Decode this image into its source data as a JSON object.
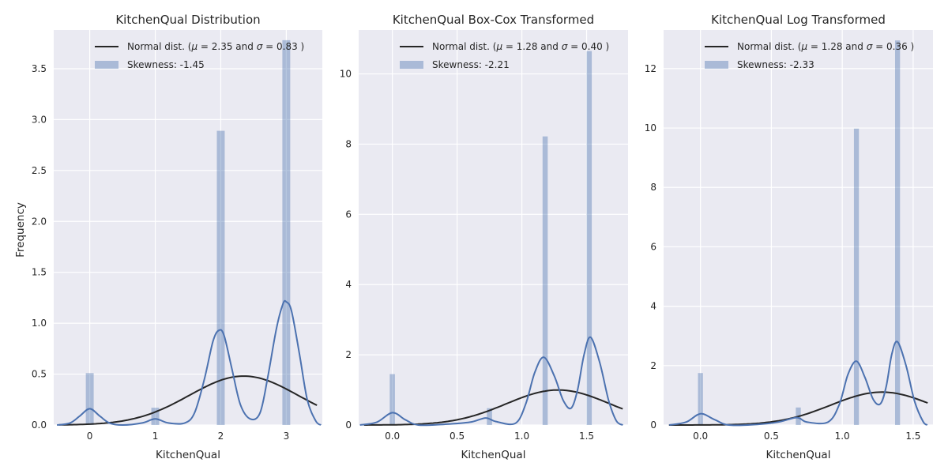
{
  "figure": {
    "ylabel": "Frequency",
    "colors": {
      "background": "#eaeaf2",
      "grid": "#ffffff",
      "bars": "#4c72b0",
      "kde": "#4c72b0",
      "normal": "#262626"
    }
  },
  "chart_data": [
    {
      "type": "histogram",
      "title": "KitchenQual Distribution",
      "xlabel": "KitchenQual",
      "ylabel": "Frequency",
      "xlim": [
        -0.55,
        3.55
      ],
      "ylim": [
        0,
        3.88
      ],
      "xticks": [
        0,
        1,
        2,
        3
      ],
      "xtick_labels": [
        "0",
        "1",
        "2",
        "3"
      ],
      "yticks": [
        0.0,
        0.5,
        1.0,
        1.5,
        2.0,
        2.5,
        3.0,
        3.5
      ],
      "ytick_labels": [
        "0.0",
        "0.5",
        "1.0",
        "1.5",
        "2.0",
        "2.5",
        "3.0",
        "3.5"
      ],
      "bars": [
        {
          "x": 0,
          "value": 0.51
        },
        {
          "x": 1,
          "value": 0.17
        },
        {
          "x": 2,
          "value": 2.89
        },
        {
          "x": 3,
          "value": 3.78
        }
      ],
      "bar_width": 0.12,
      "normal": {
        "mu": 2.35,
        "sigma": 0.83
      },
      "kde_points": [
        [
          -0.5,
          0.0
        ],
        [
          -0.3,
          0.02
        ],
        [
          -0.15,
          0.09
        ],
        [
          0,
          0.16
        ],
        [
          0.15,
          0.09
        ],
        [
          0.3,
          0.02
        ],
        [
          0.5,
          0.0
        ],
        [
          0.8,
          0.02
        ],
        [
          1,
          0.06
        ],
        [
          1.2,
          0.02
        ],
        [
          1.45,
          0.02
        ],
        [
          1.6,
          0.12
        ],
        [
          1.75,
          0.45
        ],
        [
          1.88,
          0.82
        ],
        [
          1.97,
          0.93
        ],
        [
          2.05,
          0.88
        ],
        [
          2.17,
          0.55
        ],
        [
          2.3,
          0.2
        ],
        [
          2.45,
          0.06
        ],
        [
          2.6,
          0.12
        ],
        [
          2.72,
          0.48
        ],
        [
          2.85,
          0.95
        ],
        [
          2.95,
          1.19
        ],
        [
          3.0,
          1.21
        ],
        [
          3.08,
          1.12
        ],
        [
          3.2,
          0.7
        ],
        [
          3.32,
          0.25
        ],
        [
          3.45,
          0.04
        ],
        [
          3.53,
          0.0
        ]
      ],
      "legend": {
        "normal_label": "Normal dist. ($\\mu=$ 2.35 and $\\sigma=$ 0.83 )",
        "normal_mu": "2.35",
        "normal_sigma": "0.83",
        "skew_label": "Skewness: -1.45"
      }
    },
    {
      "type": "histogram",
      "title": "KitchenQual Box-Cox Transformed",
      "xlabel": "KitchenQual",
      "ylabel": "",
      "xlim": [
        -0.26,
        1.82
      ],
      "ylim": [
        0,
        11.25
      ],
      "xticks": [
        0.0,
        0.5,
        1.0,
        1.5
      ],
      "xtick_labels": [
        "0.0",
        "0.5",
        "1.0",
        "1.5"
      ],
      "yticks": [
        0,
        2,
        4,
        6,
        8,
        10
      ],
      "ytick_labels": [
        "0",
        "2",
        "4",
        "6",
        "8",
        "10"
      ],
      "bars": [
        {
          "x": 0.0,
          "value": 1.45
        },
        {
          "x": 0.75,
          "value": 0.48
        },
        {
          "x": 1.18,
          "value": 8.22
        },
        {
          "x": 1.52,
          "value": 10.65
        }
      ],
      "bar_width": 0.04,
      "normal": {
        "mu": 1.28,
        "sigma": 0.4
      },
      "kde_points": [
        [
          -0.25,
          0.0
        ],
        [
          -0.12,
          0.08
        ],
        [
          0.0,
          0.35
        ],
        [
          0.1,
          0.15
        ],
        [
          0.2,
          0.0
        ],
        [
          0.4,
          0.02
        ],
        [
          0.6,
          0.08
        ],
        [
          0.72,
          0.2
        ],
        [
          0.8,
          0.1
        ],
        [
          0.95,
          0.05
        ],
        [
          1.03,
          0.6
        ],
        [
          1.1,
          1.5
        ],
        [
          1.17,
          1.93
        ],
        [
          1.25,
          1.4
        ],
        [
          1.32,
          0.7
        ],
        [
          1.38,
          0.48
        ],
        [
          1.43,
          1.0
        ],
        [
          1.48,
          2.0
        ],
        [
          1.53,
          2.5
        ],
        [
          1.6,
          1.8
        ],
        [
          1.67,
          0.7
        ],
        [
          1.73,
          0.12
        ],
        [
          1.78,
          0.0
        ]
      ],
      "legend": {
        "normal_label": "Normal dist. ($\\mu=$ 1.28 and $\\sigma=$ 0.40 )",
        "normal_mu": "1.28",
        "normal_sigma": "0.40",
        "skew_label": "Skewness: -2.21"
      }
    },
    {
      "type": "histogram",
      "title": "KitchenQual Log Transformed",
      "xlabel": "KitchenQual",
      "ylabel": "",
      "xlim": [
        -0.26,
        1.64
      ],
      "ylim": [
        0,
        13.3
      ],
      "xticks": [
        0.0,
        0.5,
        1.0,
        1.5
      ],
      "xtick_labels": [
        "0.0",
        "0.5",
        "1.0",
        "1.5"
      ],
      "yticks": [
        0,
        2,
        4,
        6,
        8,
        10,
        12
      ],
      "ytick_labels": [
        "0",
        "2",
        "4",
        "6",
        "8",
        "10",
        "12"
      ],
      "bars": [
        {
          "x": 0.0,
          "value": 1.75
        },
        {
          "x": 0.69,
          "value": 0.59
        },
        {
          "x": 1.1,
          "value": 9.98
        },
        {
          "x": 1.39,
          "value": 12.95
        }
      ],
      "bar_width": 0.035,
      "normal": {
        "mu": 1.28,
        "sigma": 0.36
      },
      "kde_points": [
        [
          -0.22,
          0.0
        ],
        [
          -0.1,
          0.1
        ],
        [
          0.0,
          0.38
        ],
        [
          0.1,
          0.18
        ],
        [
          0.2,
          0.0
        ],
        [
          0.4,
          0.02
        ],
        [
          0.55,
          0.1
        ],
        [
          0.68,
          0.25
        ],
        [
          0.75,
          0.1
        ],
        [
          0.9,
          0.1
        ],
        [
          0.98,
          0.7
        ],
        [
          1.04,
          1.7
        ],
        [
          1.1,
          2.15
        ],
        [
          1.16,
          1.6
        ],
        [
          1.22,
          0.85
        ],
        [
          1.27,
          0.72
        ],
        [
          1.31,
          1.3
        ],
        [
          1.35,
          2.4
        ],
        [
          1.39,
          2.8
        ],
        [
          1.45,
          2.0
        ],
        [
          1.51,
          0.8
        ],
        [
          1.57,
          0.12
        ],
        [
          1.6,
          0.0
        ]
      ],
      "legend": {
        "normal_label": "Normal dist. ($\\mu=$ 1.28 and $\\sigma=$ 0.36 )",
        "normal_mu": "1.28",
        "normal_sigma": "0.36",
        "skew_label": "Skewness: -2.33"
      }
    }
  ]
}
